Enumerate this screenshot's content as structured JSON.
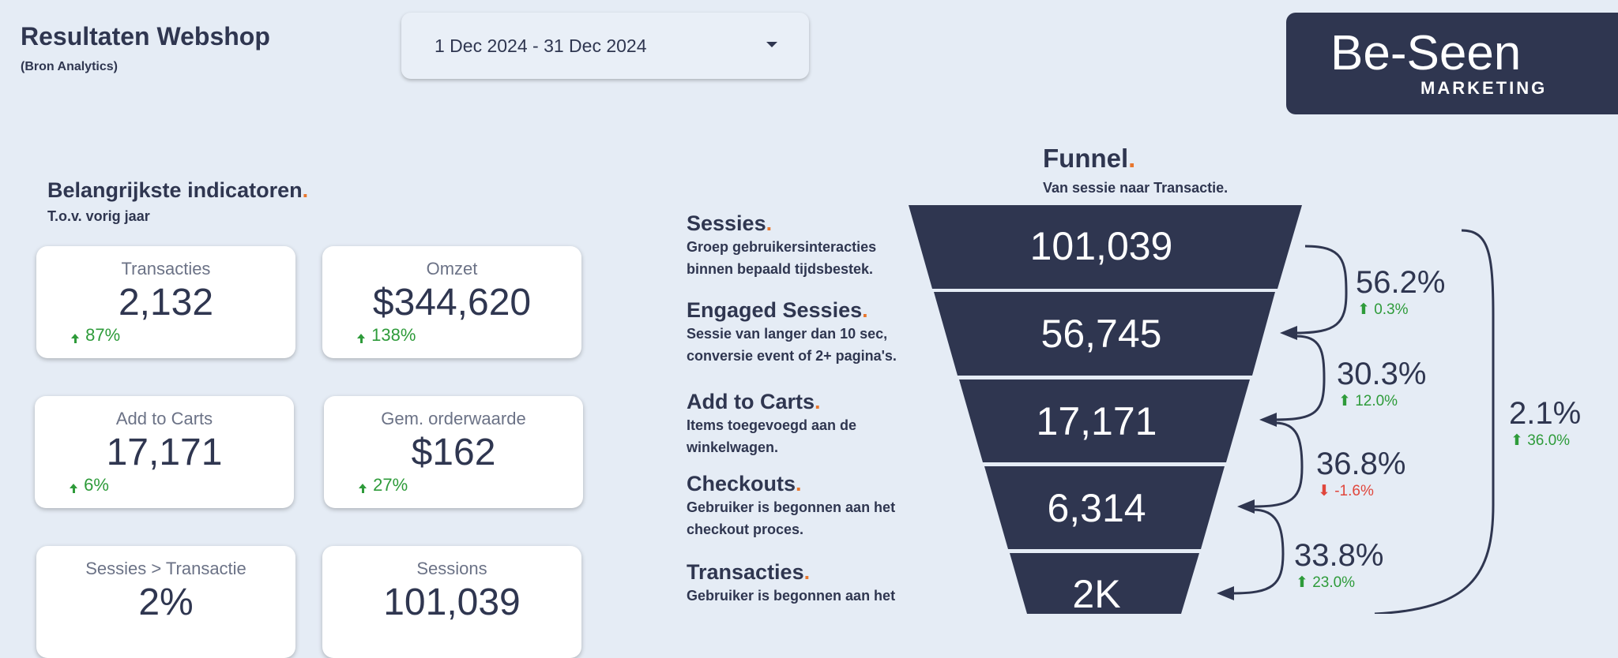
{
  "header": {
    "title": "Resultaten Webshop",
    "subtitle": "(Bron Analytics)"
  },
  "date_range": {
    "value": "1 Dec 2024 - 31 Dec 2024"
  },
  "logo": {
    "line1": "Be-Seen",
    "line2": "MARKETING"
  },
  "indicators": {
    "title": "Belangrijkste indicatoren",
    "dot": ".",
    "subtitle": "T.o.v. vorig jaar",
    "cards": [
      {
        "label": "Transacties",
        "value": "2,132",
        "delta": "87%"
      },
      {
        "label": "Omzet",
        "value": "$344,620",
        "delta": "138%"
      },
      {
        "label": "Add to Carts",
        "value": "17,171",
        "delta": "6%"
      },
      {
        "label": "Gem. orderwaarde",
        "value": "$162",
        "delta": "27%"
      },
      {
        "label": "Sessies > Transactie",
        "value": "2%",
        "delta": ""
      },
      {
        "label": "Sessions",
        "value": "101,039",
        "delta": ""
      }
    ]
  },
  "funnel": {
    "title": "Funnel",
    "dot": ".",
    "subtitle": "Van sessie naar Transactie.",
    "stages": [
      {
        "title": "Sessies",
        "desc": "Groep gebruikersinteracties binnen bepaald tijdsbestek.",
        "value": "101,039"
      },
      {
        "title": "Engaged Sessies",
        "desc": "Sessie van langer dan 10 sec, conversie event of 2+ pagina's.",
        "value": "56,745"
      },
      {
        "title": "Add to Carts",
        "desc": "Items toegevoegd aan de winkelwagen.",
        "value": "17,171"
      },
      {
        "title": "Checkouts",
        "desc": "Gebruiker is begonnen aan het checkout proces.",
        "value": "6,314"
      },
      {
        "title": "Transacties",
        "desc": "Gebruiker is begonnen aan het",
        "value": "2K"
      }
    ],
    "conversions": [
      {
        "pct": "56.2%",
        "delta": "0.3%",
        "direction": "up"
      },
      {
        "pct": "30.3%",
        "delta": "12.0%",
        "direction": "up"
      },
      {
        "pct": "36.8%",
        "delta": "-1.6%",
        "direction": "down"
      },
      {
        "pct": "33.8%",
        "delta": "23.0%",
        "direction": "up"
      }
    ],
    "overall": {
      "pct": "2.1%",
      "delta": "36.0%",
      "direction": "up"
    }
  },
  "colors": {
    "background": "#e5ecf5",
    "navy": "#2f3650",
    "accent_orange": "#e8772e",
    "positive_green": "#2e9b3a",
    "negative_red": "#e0463c"
  }
}
